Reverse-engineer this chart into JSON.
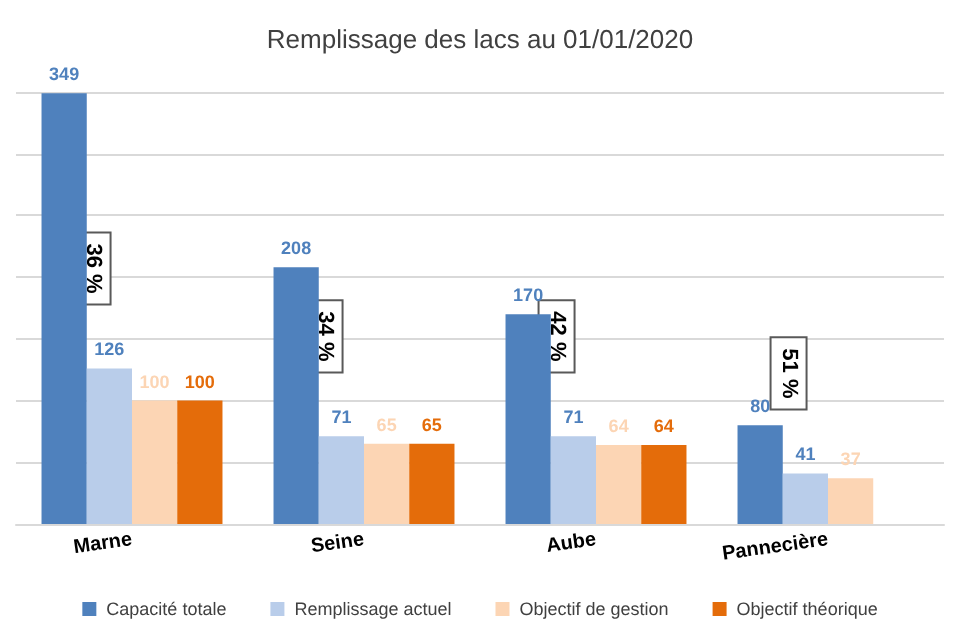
{
  "chart_data": {
    "type": "bar",
    "title": "Remplissage des lacs au 01/01/2020",
    "categories": [
      "Marne",
      "Seine",
      "Aube",
      "Pannecière"
    ],
    "series": [
      {
        "name": "Capacité totale",
        "color": "#4f81bd",
        "values": [
          349,
          208,
          170,
          80
        ]
      },
      {
        "name": "Remplissage actuel",
        "color": "#b9cdea",
        "values": [
          126,
          71,
          71,
          41
        ]
      },
      {
        "name": "Objectif de gestion",
        "color": "#fcd5b4",
        "values": [
          100,
          65,
          64,
          37
        ]
      },
      {
        "name": "Objectif théorique",
        "color": "#e46c0a",
        "values": [
          100,
          65,
          64,
          null
        ]
      }
    ],
    "ylim": [
      0,
      350
    ],
    "yticks": [
      {
        "value": 0,
        "label": null
      },
      {
        "value": 50,
        "label": null
      },
      {
        "value": 100,
        "label": null
      },
      {
        "value": 150,
        "label": null
      },
      {
        "value": 200,
        "label": null
      },
      {
        "value": 250,
        "label": null
      },
      {
        "value": 300,
        "label": null
      },
      {
        "value": 350,
        "label": null
      }
    ],
    "tick_labels": "x",
    "grid": "y",
    "legend": "bottom",
    "data_labels": true,
    "annotations": [
      "36 %",
      "34 %",
      "42 %",
      "51 %"
    ]
  }
}
